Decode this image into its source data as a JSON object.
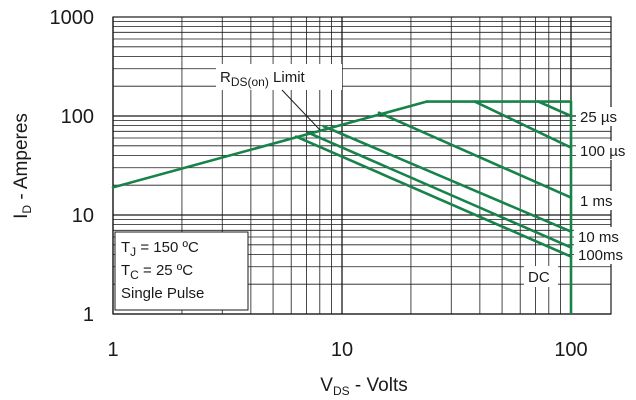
{
  "chart_data": {
    "type": "line",
    "title": "",
    "xscale": "log",
    "yscale": "log",
    "xlim": [
      1,
      100
    ],
    "ylim": [
      1,
      1000
    ],
    "xticks": [
      1,
      10,
      100
    ],
    "yticks": [
      1,
      10,
      100,
      1000
    ],
    "xtick_labels": [
      "1",
      "10",
      "100"
    ],
    "ytick_labels": [
      "1",
      "10",
      "100",
      "1000"
    ],
    "xlabel": {
      "main": "V",
      "sub": "DS",
      "rest": " - Volts"
    },
    "ylabel": {
      "main": "I",
      "sub": "D",
      "rest": " - Amperes"
    },
    "grid": true,
    "line_color": "#17834a",
    "rds_limit": {
      "label_main": "R",
      "label_sub": "DS(on)",
      "label_rest": " Limit",
      "points": [
        [
          1,
          19
        ],
        [
          23.5,
          140
        ]
      ]
    },
    "current_limit": {
      "value": 140,
      "from": 23.5,
      "to": 100
    },
    "voltage_limit": {
      "value": 100
    },
    "series": [
      {
        "name": "25 µs",
        "points": [
          [
            72,
            140
          ],
          [
            100,
            100
          ]
        ]
      },
      {
        "name": "100 µs",
        "points": [
          [
            38,
            140
          ],
          [
            100,
            48
          ]
        ]
      },
      {
        "name": "1 ms",
        "points": [
          [
            14.5,
            108
          ],
          [
            100,
            15
          ]
        ]
      },
      {
        "name": "10 ms",
        "points": [
          [
            8.3,
            79
          ],
          [
            100,
            6.8
          ]
        ]
      },
      {
        "name": "100ms",
        "points": [
          [
            7.1,
            68
          ],
          [
            100,
            4.7
          ]
        ]
      },
      {
        "name": "DC",
        "points": [
          [
            6.3,
            62
          ],
          [
            100,
            3.8
          ]
        ]
      }
    ],
    "conditions": [
      {
        "main": "T",
        "sub": "J",
        "rest": " = 150 ºC"
      },
      {
        "main": "T",
        "sub": "C",
        "rest": " = 25 ºC"
      },
      {
        "main": "Single Pulse",
        "sub": "",
        "rest": ""
      }
    ]
  }
}
